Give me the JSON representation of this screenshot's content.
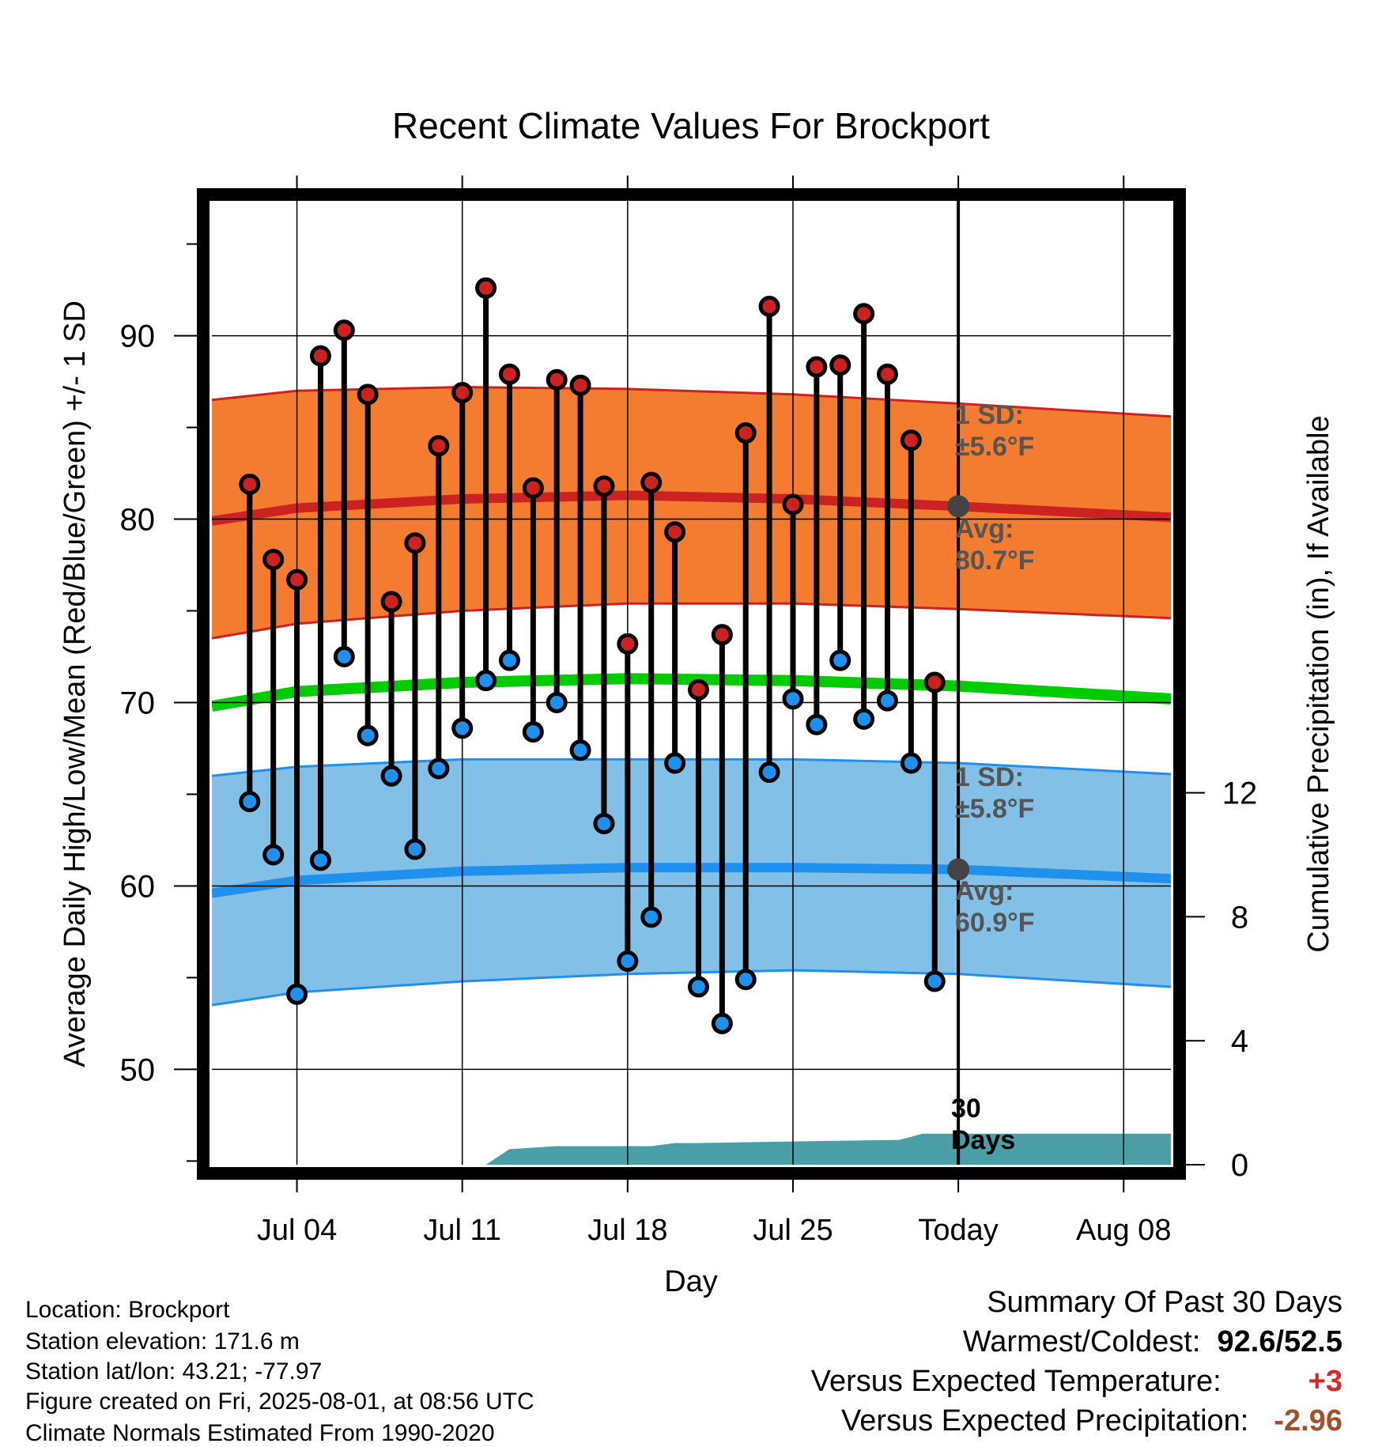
{
  "chart_data": {
    "type": "line",
    "title": "Recent Climate Values For Brockport",
    "xlabel": "Day",
    "ylabel": "Average Daily High/Low/Mean (Red/Blue/Green) +/- 1 SD",
    "y2label": "Cumulative Precipitation (in), If Available",
    "x_ticks": [
      "Jul 04",
      "Jul 11",
      "Jul 18",
      "Jul 25",
      "Today",
      "Aug 08"
    ],
    "x_tick_days": [
      3,
      10,
      17,
      24,
      31,
      38
    ],
    "y_ticks": [
      50,
      60,
      70,
      80,
      90
    ],
    "y2_ticks": [
      0,
      4,
      8,
      12
    ],
    "xlim": [
      -0.6,
      40.0
    ],
    "ylim": [
      44.8,
      97.7
    ],
    "y2lim": [
      0,
      31.3
    ],
    "grid": true,
    "today_marker": {
      "day": 31,
      "label_lines": [
        "30",
        "Days"
      ]
    },
    "days": [
      1,
      2,
      3,
      4,
      5,
      6,
      7,
      8,
      9,
      10,
      11,
      12,
      13,
      14,
      15,
      16,
      17,
      18,
      19,
      20,
      21,
      22,
      23,
      24,
      25,
      26,
      27,
      28,
      29,
      30
    ],
    "series": [
      {
        "name": "Daily High",
        "color": "#cc2222",
        "values": [
          81.9,
          77.8,
          76.7,
          88.9,
          90.3,
          86.8,
          75.5,
          78.7,
          84.0,
          86.9,
          92.6,
          87.9,
          81.7,
          87.6,
          87.3,
          81.8,
          73.2,
          82.0,
          79.3,
          70.7,
          73.7,
          84.7,
          91.6,
          80.8,
          88.3,
          88.4,
          91.2,
          87.9,
          84.3,
          71.1
        ]
      },
      {
        "name": "Daily Low",
        "color": "#2090ee",
        "values": [
          64.6,
          61.7,
          54.1,
          61.4,
          72.5,
          68.2,
          66.0,
          62.0,
          66.4,
          68.6,
          71.2,
          72.3,
          68.4,
          70.0,
          67.4,
          63.4,
          55.9,
          58.3,
          66.7,
          54.5,
          52.5,
          54.9,
          66.2,
          70.2,
          68.8,
          72.3,
          69.1,
          70.1,
          66.7,
          54.8
        ]
      }
    ],
    "normals": {
      "days": [
        -0.6,
        3,
        10,
        17,
        24,
        31,
        40
      ],
      "high_avg": [
        79.9,
        80.6,
        81.1,
        81.3,
        81.1,
        80.7,
        80.1
      ],
      "high_sd_upper": [
        86.5,
        87.0,
        87.2,
        87.1,
        86.8,
        86.3,
        85.6
      ],
      "high_sd_lower": [
        73.5,
        74.3,
        75.0,
        75.4,
        75.4,
        75.1,
        74.6
      ],
      "mean_avg": [
        69.8,
        70.6,
        71.1,
        71.3,
        71.2,
        70.9,
        70.2
      ],
      "low_avg": [
        59.6,
        60.3,
        60.8,
        61.0,
        61.0,
        60.9,
        60.4
      ],
      "low_sd_upper": [
        66.0,
        66.5,
        66.9,
        66.9,
        66.9,
        66.7,
        66.1
      ],
      "low_sd_lower": [
        53.5,
        54.2,
        54.8,
        55.2,
        55.4,
        55.2,
        54.5
      ],
      "colors": {
        "high_band": "#f47c30",
        "high_line": "#cc2222",
        "mean_line": "#00cc00",
        "low_band": "#82c0e8",
        "low_line": "#2090ee"
      }
    },
    "precipitation": {
      "color": "#4a9ea5",
      "days": [
        -0.6,
        7.5,
        8.0,
        10.0,
        11.0,
        12.0,
        14.0,
        18.0,
        19.0,
        20.0,
        24.0,
        28.5,
        29.5,
        40.0
      ],
      "values": [
        0.0,
        0.0,
        0.0,
        0.0,
        0.0,
        0.5,
        0.6,
        0.6,
        0.7,
        0.7,
        0.75,
        0.8,
        1.0,
        1.0
      ]
    },
    "annotations": {
      "high_sd": {
        "lines": [
          "1 SD:",
          "±5.6°F"
        ],
        "value": 5.6
      },
      "high_avg": {
        "lines": [
          "Avg:",
          "80.7°F"
        ],
        "value": 80.7
      },
      "low_sd": {
        "lines": [
          "1 SD:",
          "±5.8°F"
        ],
        "value": 5.8
      },
      "low_avg": {
        "lines": [
          "Avg:",
          "60.9°F"
        ],
        "value": 60.9
      },
      "color": "#555555"
    }
  },
  "footer": {
    "location": "Location: Brockport",
    "elevation": "Station elevation: 171.6 m",
    "latlon": "Station lat/lon: 43.21; -77.97",
    "created": "Figure created on Fri, 2025-08-01, at 08:56 UTC",
    "normals": "Climate Normals Estimated From 1990-2020"
  },
  "summary": {
    "title": "Summary Of Past 30 Days",
    "warmest_coldest_label": "Warmest/Coldest:",
    "warmest_coldest_value": "92.6/52.5",
    "temp_label": "Versus Expected Temperature:",
    "temp_value": "+3",
    "temp_color": "#d42a2a",
    "precip_label": "Versus Expected Precipitation:",
    "precip_value": "-2.96",
    "precip_color": "#a0522d"
  }
}
